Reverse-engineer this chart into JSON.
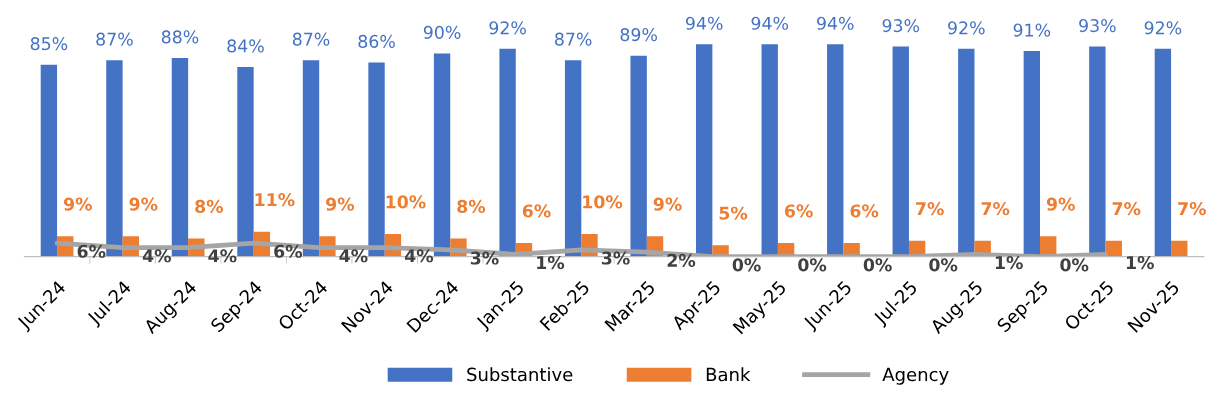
{
  "chart_data": {
    "type": "bar",
    "categories": [
      "Jun-24",
      "Jul-24",
      "Aug-24",
      "Sep-24",
      "Oct-24",
      "Nov-24",
      "Dec-24",
      "Jan-25",
      "Feb-25",
      "Mar-25",
      "Apr-25",
      "May-25",
      "Jun-25",
      "Jul-25",
      "Aug-25",
      "Sep-25",
      "Oct-25",
      "Nov-25"
    ],
    "series": [
      {
        "name": "Substantive",
        "color": "#4472c4",
        "values": [
          85,
          87,
          88,
          84,
          87,
          86,
          90,
          92,
          87,
          89,
          94,
          94,
          94,
          93,
          92,
          91,
          93,
          92
        ],
        "value_labels": [
          "85%",
          "87%",
          "88%",
          "84%",
          "87%",
          "86%",
          "90%",
          "92%",
          "87%",
          "89%",
          "94%",
          "94%",
          "94%",
          "93%",
          "92%",
          "91%",
          "93%",
          "92%"
        ]
      },
      {
        "name": "Bank",
        "color": "#ed7d31",
        "values": [
          9,
          9,
          8,
          11,
          9,
          10,
          8,
          6,
          10,
          9,
          5,
          6,
          6,
          7,
          7,
          9,
          7,
          7
        ],
        "value_labels": [
          "9%",
          "9%",
          "8%",
          "11%",
          "9%",
          "10%",
          "8%",
          "6%",
          "10%",
          "9%",
          "5%",
          "6%",
          "6%",
          "7%",
          "7%",
          "9%",
          "7%",
          "7%"
        ]
      },
      {
        "name": "Agency",
        "type": "line",
        "color": "#a5a5a5",
        "values": [
          6,
          4,
          4,
          6,
          4,
          4,
          3,
          1,
          3,
          2,
          0,
          0,
          0,
          0,
          1,
          0,
          1,
          null
        ],
        "value_labels": [
          "6%",
          "4%",
          "4%",
          "6%",
          "4%",
          "4%",
          "3%",
          "1%",
          "3%",
          "2%",
          "0%",
          "0%",
          "0%",
          "0%",
          "1%",
          "0%",
          "1%",
          null
        ]
      }
    ],
    "legend": "bottom",
    "grid": false
  }
}
